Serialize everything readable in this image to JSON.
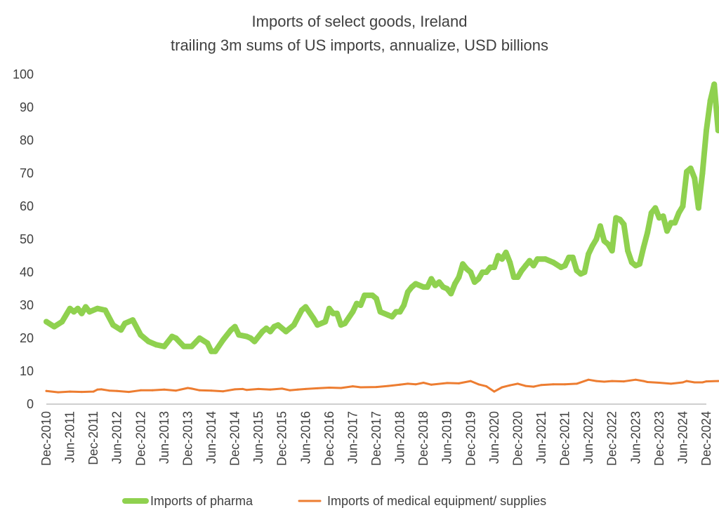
{
  "chart_data": {
    "type": "line",
    "title": "Imports of select goods, Ireland",
    "subtitle": "trailing 3m sums of US imports, annualize, USD billions",
    "xlabel": "",
    "ylabel": "",
    "ylim": [
      0,
      100
    ],
    "yticks": [
      0,
      10,
      20,
      30,
      40,
      50,
      60,
      70,
      80,
      90,
      100
    ],
    "grid": false,
    "legend_position": "bottom",
    "x_tick_labels": [
      "Dec-2010",
      "Jun-2011",
      "Dec-2011",
      "Jun-2012",
      "Dec-2012",
      "Jun-2013",
      "Dec-2013",
      "Jun-2014",
      "Dec-2014",
      "Jun-2015",
      "Dec-2015",
      "Jun-2016",
      "Dec-2016",
      "Jun-2017",
      "Dec-2017",
      "Jun-2018",
      "Dec-2018",
      "Jun-2019",
      "Dec-2019",
      "Jun-2020",
      "Dec-2020",
      "Jun-2021",
      "Dec-2021",
      "Jun-2022",
      "Dec-2022",
      "Jun-2023",
      "Dec-2023",
      "Jun-2024",
      "Dec-2024"
    ],
    "x_start": "Dec-2010",
    "x_end": "Dec-2024",
    "series": [
      {
        "name": "Imports of pharma",
        "color": "#8fd14f",
        "anchors": [
          [
            "Dec-2010",
            25
          ],
          [
            "Feb-2011",
            23.5
          ],
          [
            "Apr-2011",
            25
          ],
          [
            "Jun-2011",
            29
          ],
          [
            "Jul-2011",
            28
          ],
          [
            "Aug-2011",
            29
          ],
          [
            "Sep-2011",
            27.5
          ],
          [
            "Oct-2011",
            29.5
          ],
          [
            "Nov-2011",
            28
          ],
          [
            "Jan-2012",
            29
          ],
          [
            "Mar-2012",
            28.5
          ],
          [
            "May-2012",
            24
          ],
          [
            "Jul-2012",
            22.5
          ],
          [
            "Aug-2012",
            24.5
          ],
          [
            "Oct-2012",
            25.5
          ],
          [
            "Dec-2012",
            21
          ],
          [
            "Feb-2013",
            19
          ],
          [
            "Apr-2013",
            18
          ],
          [
            "Jun-2013",
            17.5
          ],
          [
            "Aug-2013",
            20.5
          ],
          [
            "Sep-2013",
            20
          ],
          [
            "Nov-2013",
            17.5
          ],
          [
            "Jan-2014",
            17.5
          ],
          [
            "Mar-2014",
            20
          ],
          [
            "May-2014",
            18.5
          ],
          [
            "Jun-2014",
            16
          ],
          [
            "Jul-2014",
            16
          ],
          [
            "Sep-2014",
            19.5
          ],
          [
            "Nov-2014",
            22.5
          ],
          [
            "Dec-2014",
            23.5
          ],
          [
            "Jan-2015",
            21
          ],
          [
            "Mar-2015",
            20.5
          ],
          [
            "Apr-2015",
            20
          ],
          [
            "May-2015",
            19
          ],
          [
            "Jul-2015",
            22
          ],
          [
            "Aug-2015",
            23
          ],
          [
            "Sep-2015",
            22
          ],
          [
            "Oct-2015",
            23.5
          ],
          [
            "Nov-2015",
            24
          ],
          [
            "Jan-2016",
            22
          ],
          [
            "Mar-2016",
            24
          ],
          [
            "May-2016",
            28.5
          ],
          [
            "Jun-2016",
            29.5
          ],
          [
            "Aug-2016",
            26
          ],
          [
            "Sep-2016",
            24
          ],
          [
            "Nov-2016",
            25
          ],
          [
            "Dec-2016",
            29
          ],
          [
            "Jan-2017",
            27.5
          ],
          [
            "Feb-2017",
            27.5
          ],
          [
            "Mar-2017",
            24
          ],
          [
            "Apr-2017",
            24.5
          ],
          [
            "Jun-2017",
            28
          ],
          [
            "Jul-2017",
            30.5
          ],
          [
            "Aug-2017",
            30
          ],
          [
            "Sep-2017",
            33
          ],
          [
            "Nov-2017",
            33
          ],
          [
            "Dec-2017",
            32
          ],
          [
            "Jan-2018",
            28
          ],
          [
            "Mar-2018",
            27
          ],
          [
            "Apr-2018",
            26.5
          ],
          [
            "May-2018",
            28
          ],
          [
            "Jun-2018",
            28
          ],
          [
            "Jul-2018",
            30
          ],
          [
            "Aug-2018",
            34
          ],
          [
            "Sep-2018",
            35.5
          ],
          [
            "Oct-2018",
            36.5
          ],
          [
            "Dec-2018",
            35.5
          ],
          [
            "Jan-2019",
            35.5
          ],
          [
            "Feb-2019",
            38
          ],
          [
            "Mar-2019",
            36
          ],
          [
            "Apr-2019",
            37
          ],
          [
            "May-2019",
            35.5
          ],
          [
            "Jun-2019",
            35
          ],
          [
            "Jul-2019",
            33.5
          ],
          [
            "Aug-2019",
            36.5
          ],
          [
            "Sep-2019",
            38.5
          ],
          [
            "Oct-2019",
            42.5
          ],
          [
            "Nov-2019",
            41
          ],
          [
            "Dec-2019",
            40
          ],
          [
            "Jan-2020",
            37
          ],
          [
            "Feb-2020",
            38
          ],
          [
            "Mar-2020",
            40
          ],
          [
            "Apr-2020",
            40
          ],
          [
            "May-2020",
            41.5
          ],
          [
            "Jun-2020",
            41.5
          ],
          [
            "Jul-2020",
            45
          ],
          [
            "Aug-2020",
            44
          ],
          [
            "Sep-2020",
            46
          ],
          [
            "Oct-2020",
            43
          ],
          [
            "Nov-2020",
            38.5
          ],
          [
            "Dec-2020",
            38.5
          ],
          [
            "Jan-2021",
            40.5
          ],
          [
            "Feb-2021",
            42
          ],
          [
            "Mar-2021",
            43.5
          ],
          [
            "Apr-2021",
            42
          ],
          [
            "May-2021",
            44
          ],
          [
            "Jul-2021",
            44
          ],
          [
            "Sep-2021",
            43
          ],
          [
            "Nov-2021",
            41.5
          ],
          [
            "Dec-2021",
            42
          ],
          [
            "Jan-2022",
            44.5
          ],
          [
            "Feb-2022",
            44.5
          ],
          [
            "Mar-2022",
            40.5
          ],
          [
            "Apr-2022",
            39.5
          ],
          [
            "May-2022",
            40
          ],
          [
            "Jun-2022",
            45.5
          ],
          [
            "Jul-2022",
            48
          ],
          [
            "Aug-2022",
            50
          ],
          [
            "Sep-2022",
            54
          ],
          [
            "Oct-2022",
            49.5
          ],
          [
            "Nov-2022",
            48.5
          ],
          [
            "Dec-2022",
            46.5
          ],
          [
            "Jan-2023",
            56.5
          ],
          [
            "Feb-2023",
            56
          ],
          [
            "Mar-2023",
            54.5
          ],
          [
            "Apr-2023",
            46.5
          ],
          [
            "May-2023",
            43
          ],
          [
            "Jun-2023",
            42
          ],
          [
            "Jul-2023",
            42.5
          ],
          [
            "Aug-2023",
            47.5
          ],
          [
            "Sep-2023",
            52
          ],
          [
            "Oct-2023",
            58
          ],
          [
            "Nov-2023",
            59.5
          ],
          [
            "Dec-2023",
            56.5
          ],
          [
            "Jan-2024",
            57
          ],
          [
            "Feb-2024",
            52.5
          ],
          [
            "Mar-2024",
            55
          ],
          [
            "Apr-2024",
            55
          ],
          [
            "May-2024",
            58
          ],
          [
            "Jun-2024",
            60
          ],
          [
            "Jul-2024",
            70.5
          ],
          [
            "Aug-2024",
            71.5
          ],
          [
            "Sep-2024",
            68.5
          ],
          [
            "Oct-2024",
            59.5
          ],
          [
            "Nov-2024",
            70
          ],
          [
            "Dec-2024",
            83
          ],
          [
            "Jan-2025",
            92
          ],
          [
            "Feb-2025",
            97
          ],
          [
            "Mar-2025",
            83
          ]
        ]
      },
      {
        "name": "Imports of medical equipment/ supplies",
        "color": "#ed7d31",
        "anchors": [
          [
            "Dec-2010",
            4.0
          ],
          [
            "Mar-2011",
            3.6
          ],
          [
            "Jun-2011",
            3.8
          ],
          [
            "Sep-2011",
            3.7
          ],
          [
            "Dec-2011",
            3.8
          ],
          [
            "Jan-2012",
            4.4
          ],
          [
            "Feb-2012",
            4.5
          ],
          [
            "Apr-2012",
            4.1
          ],
          [
            "Jun-2012",
            4.0
          ],
          [
            "Sep-2012",
            3.7
          ],
          [
            "Dec-2012",
            4.2
          ],
          [
            "Mar-2013",
            4.2
          ],
          [
            "Jun-2013",
            4.4
          ],
          [
            "Sep-2013",
            4.1
          ],
          [
            "Dec-2013",
            4.9
          ],
          [
            "Jan-2014",
            4.7
          ],
          [
            "Mar-2014",
            4.2
          ],
          [
            "Jun-2014",
            4.1
          ],
          [
            "Sep-2014",
            3.9
          ],
          [
            "Dec-2014",
            4.5
          ],
          [
            "Feb-2015",
            4.6
          ],
          [
            "Mar-2015",
            4.3
          ],
          [
            "Jun-2015",
            4.6
          ],
          [
            "Sep-2015",
            4.4
          ],
          [
            "Dec-2015",
            4.7
          ],
          [
            "Feb-2016",
            4.2
          ],
          [
            "Apr-2016",
            4.4
          ],
          [
            "Jun-2016",
            4.6
          ],
          [
            "Sep-2016",
            4.8
          ],
          [
            "Dec-2016",
            5.0
          ],
          [
            "Mar-2017",
            4.9
          ],
          [
            "Jun-2017",
            5.4
          ],
          [
            "Aug-2017",
            5.1
          ],
          [
            "Dec-2017",
            5.2
          ],
          [
            "Mar-2018",
            5.5
          ],
          [
            "Jun-2018",
            5.9
          ],
          [
            "Aug-2018",
            6.2
          ],
          [
            "Oct-2018",
            6.0
          ],
          [
            "Dec-2018",
            6.5
          ],
          [
            "Feb-2019",
            5.9
          ],
          [
            "Jun-2019",
            6.4
          ],
          [
            "Sep-2019",
            6.3
          ],
          [
            "Dec-2019",
            7.0
          ],
          [
            "Feb-2020",
            6.0
          ],
          [
            "Apr-2020",
            5.4
          ],
          [
            "Jun-2020",
            3.8
          ],
          [
            "Aug-2020",
            5.1
          ],
          [
            "Oct-2020",
            5.7
          ],
          [
            "Dec-2020",
            6.2
          ],
          [
            "Feb-2021",
            5.5
          ],
          [
            "Apr-2021",
            5.3
          ],
          [
            "Jun-2021",
            5.8
          ],
          [
            "Sep-2021",
            6.0
          ],
          [
            "Dec-2021",
            6.0
          ],
          [
            "Mar-2022",
            6.2
          ],
          [
            "Jun-2022",
            7.4
          ],
          [
            "Aug-2022",
            7.0
          ],
          [
            "Oct-2022",
            6.8
          ],
          [
            "Dec-2022",
            7.0
          ],
          [
            "Mar-2023",
            6.9
          ],
          [
            "Jun-2023",
            7.4
          ],
          [
            "Aug-2023",
            7.0
          ],
          [
            "Sep-2023",
            6.7
          ],
          [
            "Dec-2023",
            6.5
          ],
          [
            "Mar-2024",
            6.2
          ],
          [
            "Jun-2024",
            6.6
          ],
          [
            "Jul-2024",
            7.0
          ],
          [
            "Sep-2024",
            6.6
          ],
          [
            "Nov-2024",
            6.6
          ],
          [
            "Dec-2024",
            6.9
          ],
          [
            "Mar-2025",
            7.0
          ]
        ]
      }
    ]
  }
}
